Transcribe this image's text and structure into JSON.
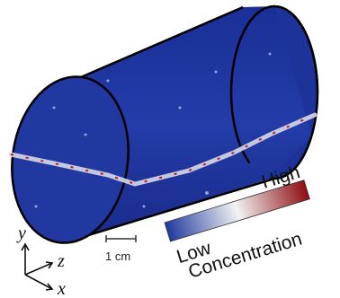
{
  "colorbar": {
    "low": "Low",
    "high": "High",
    "label": "Concentration"
  },
  "scale_bar": "1 cm",
  "axes": {
    "y": "y",
    "z": "z",
    "x": "x"
  }
}
